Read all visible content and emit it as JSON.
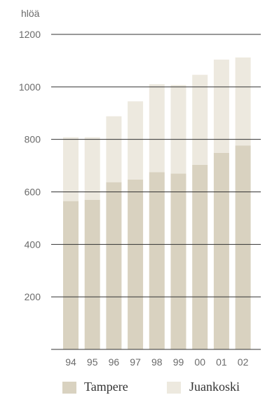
{
  "chart_data": {
    "type": "bar",
    "stacked": true,
    "unit_label": "hlöä",
    "categories": [
      "94",
      "95",
      "96",
      "97",
      "98",
      "99",
      "00",
      "01",
      "02"
    ],
    "series": [
      {
        "name": "Tampere",
        "values": [
          565,
          570,
          637,
          647,
          675,
          670,
          703,
          749,
          777
        ],
        "color": "#d9d2c0"
      },
      {
        "name": "Juankoski",
        "values": [
          243,
          238,
          251,
          298,
          335,
          337,
          343,
          355,
          335
        ],
        "color": "#ede9df"
      }
    ],
    "yticks": [
      200,
      400,
      600,
      800,
      1000,
      1200
    ],
    "ylim": [
      0,
      1200
    ],
    "grid": true,
    "legend_position": "bottom"
  }
}
